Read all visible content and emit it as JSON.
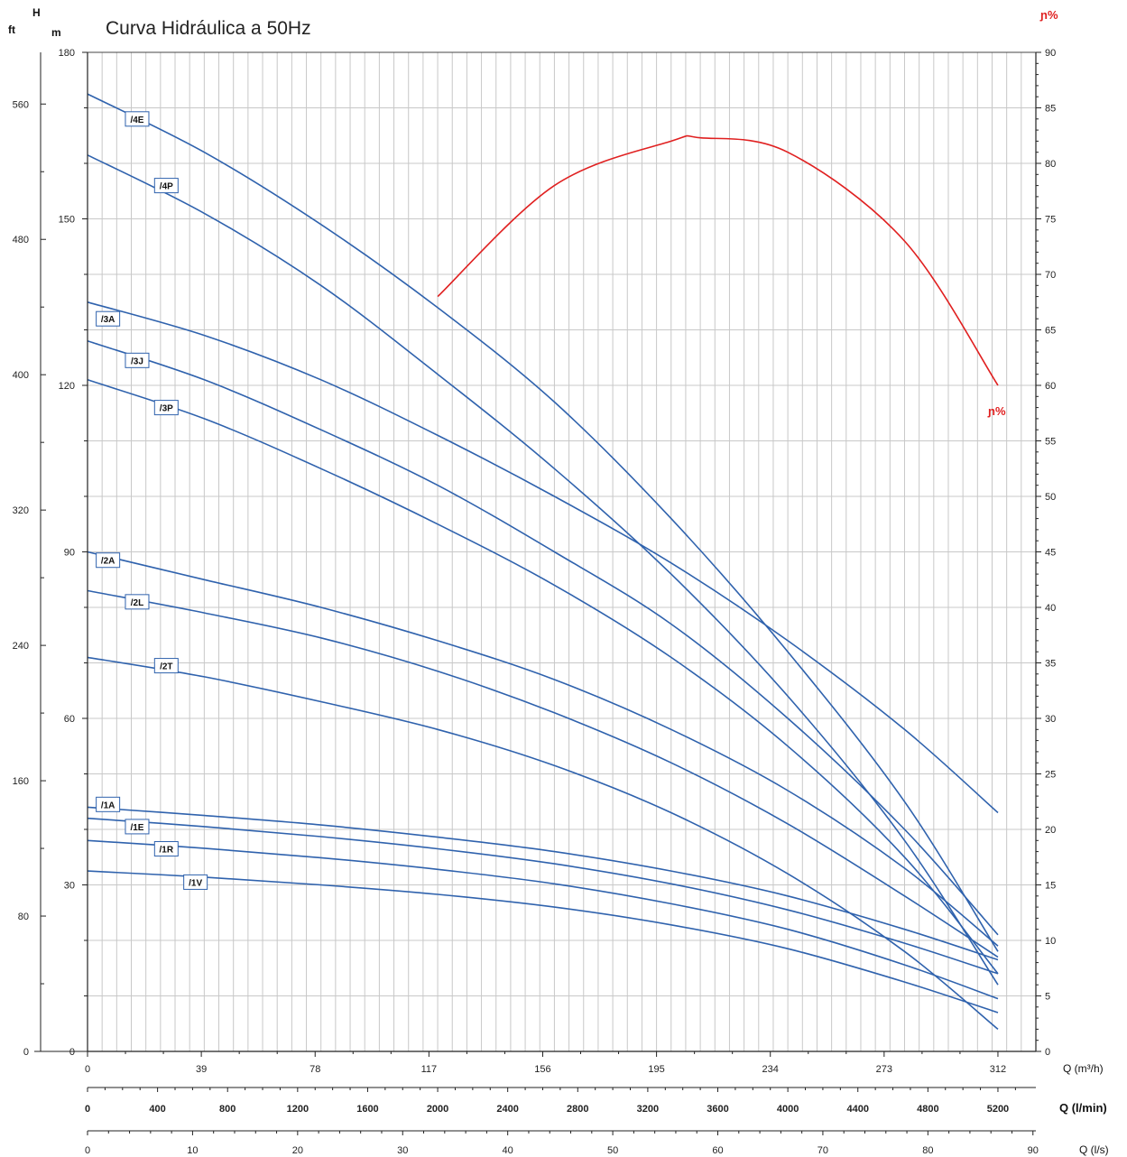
{
  "chart_data": {
    "type": "line",
    "title": "Curva Hidráulica a 50Hz",
    "header_h": "H",
    "header_m": "m",
    "header_ft": "ft",
    "eta_header": "ɲ%",
    "eta_label": "ɲ%",
    "x_unit_m3h": "Q (m³/h)",
    "x_unit_lmin": "Q (l/min)",
    "x_unit_ls": "Q (l/s)",
    "xlim_m3h": [
      0,
      325
    ],
    "ylim_m": [
      0,
      180
    ],
    "ylim_eta": [
      0,
      90
    ],
    "grid": true,
    "ticks": {
      "m3h": [
        "0",
        "39",
        "78",
        "117",
        "156",
        "195",
        "234",
        "273",
        "312"
      ],
      "lmin": [
        "0",
        "400",
        "800",
        "1200",
        "1600",
        "2000",
        "2400",
        "2800",
        "3200",
        "3600",
        "4000",
        "4400",
        "4800",
        "5200"
      ],
      "ls": [
        "0",
        "10",
        "20",
        "30",
        "40",
        "50",
        "60",
        "70",
        "80",
        "90"
      ],
      "m": [
        "0",
        "30",
        "60",
        "90",
        "120",
        "150",
        "180"
      ],
      "ft": [
        "0",
        "80",
        "160",
        "240",
        "320",
        "400",
        "480",
        "560"
      ],
      "eta": [
        "0",
        "5",
        "10",
        "15",
        "20",
        "25",
        "30",
        "35",
        "40",
        "45",
        "50",
        "55",
        "60",
        "65",
        "70",
        "75",
        "80",
        "85",
        "90"
      ]
    },
    "series": [
      {
        "name": "/4E",
        "label_at": [
          17,
          168
        ],
        "x": [
          0,
          40,
          80,
          120,
          160,
          200,
          240,
          280,
          312
        ],
        "y": [
          172.5,
          162,
          149,
          134,
          117,
          96,
          72,
          45,
          18
        ]
      },
      {
        "name": "/4P",
        "label_at": [
          27,
          156
        ],
        "x": [
          0,
          40,
          80,
          120,
          160,
          200,
          240,
          280,
          312
        ],
        "y": [
          161.5,
          151,
          138,
          122,
          105,
          86,
          64,
          38,
          12
        ]
      },
      {
        "name": "/3A",
        "label_at": [
          7,
          132
        ],
        "x": [
          0,
          40,
          80,
          120,
          160,
          200,
          240,
          280,
          312
        ],
        "y": [
          135,
          129,
          121,
          111,
          100,
          88,
          74,
          58,
          43
        ]
      },
      {
        "name": "/3J",
        "label_at": [
          17,
          124.5
        ],
        "x": [
          0,
          40,
          80,
          120,
          160,
          200,
          240,
          280,
          312
        ],
        "y": [
          128,
          121,
          112,
          102,
          90,
          77,
          60,
          40,
          21
        ]
      },
      {
        "name": "/3P",
        "label_at": [
          27,
          116
        ],
        "x": [
          0,
          40,
          80,
          120,
          160,
          200,
          240,
          280,
          312
        ],
        "y": [
          121,
          114,
          105,
          95,
          84,
          71,
          55,
          35,
          14
        ]
      },
      {
        "name": "/2A",
        "label_at": [
          7,
          88.5
        ],
        "x": [
          0,
          40,
          80,
          120,
          160,
          200,
          240,
          280,
          312
        ],
        "y": [
          90,
          85,
          80,
          74,
          67,
          58,
          47,
          33,
          19
        ]
      },
      {
        "name": "/2L",
        "label_at": [
          17,
          81
        ],
        "x": [
          0,
          40,
          80,
          120,
          160,
          200,
          240,
          280,
          312
        ],
        "y": [
          83,
          79,
          74.5,
          68.5,
          61,
          52,
          41,
          28,
          17
        ]
      },
      {
        "name": "/2T",
        "label_at": [
          27,
          69.5
        ],
        "x": [
          0,
          40,
          80,
          120,
          160,
          200,
          240,
          280,
          312
        ],
        "y": [
          71,
          67.5,
          63,
          58,
          51.5,
          43,
          32,
          18,
          4
        ]
      },
      {
        "name": "/1A",
        "label_at": [
          7,
          44.5
        ],
        "x": [
          0,
          40,
          80,
          120,
          160,
          200,
          240,
          280,
          312
        ],
        "y": [
          44,
          42.5,
          40.8,
          38.6,
          36,
          32.5,
          28,
          22,
          16.5
        ]
      },
      {
        "name": "/1E",
        "label_at": [
          17,
          40.5
        ],
        "x": [
          0,
          40,
          80,
          120,
          160,
          200,
          240,
          280,
          312
        ],
        "y": [
          42,
          40.5,
          38.7,
          36.5,
          33.8,
          30.2,
          25.5,
          19.5,
          14
        ]
      },
      {
        "name": "/1R",
        "label_at": [
          27,
          36.5
        ],
        "x": [
          0,
          40,
          80,
          120,
          160,
          200,
          240,
          280,
          312
        ],
        "y": [
          38,
          36.6,
          34.9,
          32.8,
          30.2,
          26.6,
          22,
          15.6,
          9.5
        ]
      },
      {
        "name": "/1V",
        "label_at": [
          37,
          30.5
        ],
        "x": [
          0,
          40,
          80,
          120,
          160,
          200,
          240,
          280,
          312
        ],
        "y": [
          32.5,
          31.4,
          30,
          28.3,
          26,
          22.8,
          18.5,
          12.5,
          7
        ]
      }
    ],
    "efficiency": {
      "name": "ɲ%",
      "x": [
        120,
        160,
        200,
        210,
        240,
        280,
        312
      ],
      "y": [
        68,
        78,
        82,
        82.3,
        81,
        73,
        60
      ]
    }
  }
}
